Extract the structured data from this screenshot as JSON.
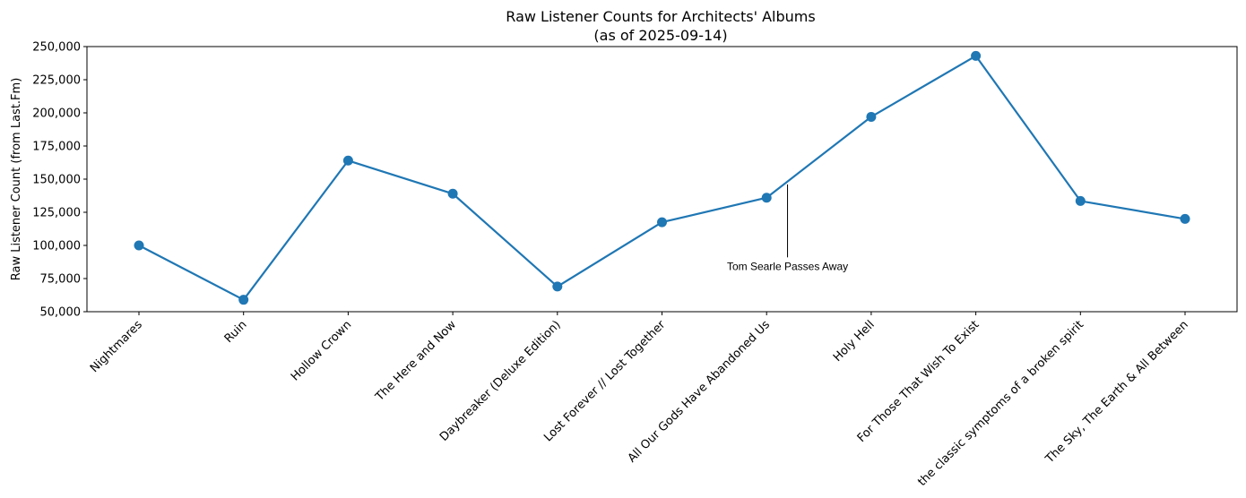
{
  "chart_data": {
    "type": "line",
    "title": "Raw Listener Counts for Architects' Albums",
    "subtitle": "(as of 2025-09-14)",
    "xlabel": "",
    "ylabel": "Raw Listener Count (from Last.Fm)",
    "ylim": [
      50000,
      250000
    ],
    "yticks": [
      50000,
      75000,
      100000,
      125000,
      150000,
      175000,
      200000,
      225000,
      250000
    ],
    "ytick_labels": [
      "50,000",
      "75,000",
      "100,000",
      "125,000",
      "150,000",
      "175,000",
      "200,000",
      "225,000",
      "250,000"
    ],
    "categories": [
      "Nightmares",
      "Ruin",
      "Hollow Crown",
      "The Here and Now",
      "Daybreaker (Deluxe Edition)",
      "Lost Forever // Lost Together",
      "All Our Gods Have Abandoned Us",
      "Holy Hell",
      "For Those That Wish To Exist",
      "the classic symptoms of a broken spirit",
      "The Sky, The Earth & All Between"
    ],
    "series": [
      {
        "values": [
          100000,
          59000,
          164000,
          139000,
          69000,
          117500,
          136000,
          197000,
          243000,
          133500,
          120000
        ],
        "color": "#1f77b4"
      }
    ],
    "annotations": [
      {
        "text": "Tom Searle Passes Away",
        "x": 6.2,
        "y_top": 146000,
        "y_bottom": 91000
      }
    ],
    "grid": false,
    "legend": "none"
  }
}
